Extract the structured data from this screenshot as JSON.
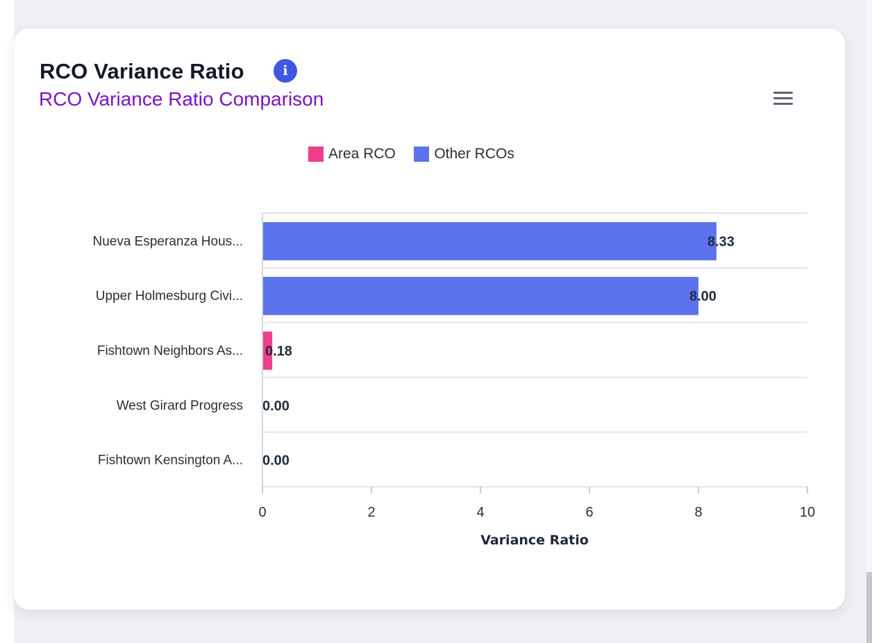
{
  "card": {
    "title": "RCO Variance Ratio",
    "info_icon": "info-icon"
  },
  "chart_data": {
    "type": "bar",
    "orientation": "horizontal",
    "title": "RCO Variance Ratio Comparison",
    "xlabel": "Variance Ratio",
    "ylabel": "",
    "xlim": [
      0,
      10
    ],
    "xticks": [
      0,
      2,
      4,
      6,
      8,
      10
    ],
    "grid": "horizontal category lines",
    "legend_position": "top-center",
    "legend": [
      {
        "name": "Area RCO",
        "color": "#f03d8c"
      },
      {
        "name": "Other RCOs",
        "color": "#5b74ec"
      }
    ],
    "categories": [
      "Nueva Esperanza Hous...",
      "Upper Holmesburg Civi...",
      "Fishtown Neighbors As...",
      "West Girard Progress",
      "Fishtown Kensington A..."
    ],
    "values": [
      8.33,
      8.0,
      0.18,
      0.0,
      0.0
    ],
    "value_labels": [
      "8.33",
      "8.00",
      "0.18",
      "0.00",
      "0.00"
    ],
    "series_membership": [
      "Other RCOs",
      "Other RCOs",
      "Area RCO",
      "Other RCOs",
      "Other RCOs"
    ]
  },
  "colors": {
    "title_purple": "#7b12c9",
    "info_blue": "#4057e0",
    "area_rco": "#f03d8c",
    "other_rcos": "#5b74ec",
    "grid": "#e2e4e8",
    "label_dark": "#1f2d3d"
  },
  "menu": {
    "icon": "hamburger-menu-icon"
  }
}
